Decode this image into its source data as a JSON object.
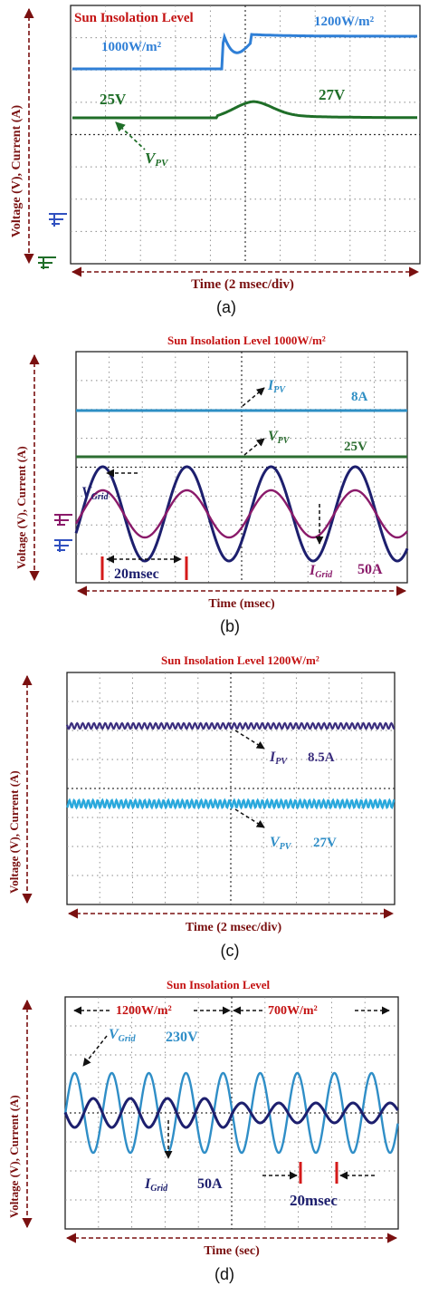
{
  "chart_data": [
    {
      "panel": "(a)",
      "type": "line",
      "title": "Sun Insolation Level",
      "xlabel": "Time (2 msec/div)",
      "ylabel": "Voltage (V), Current (A)",
      "series": [
        {
          "name": "Sun Insolation Level",
          "color": "#2f7fd6",
          "values_before": "1000W/m²",
          "values_after": "1200W/m²"
        },
        {
          "name": "V_PV",
          "color": "#1f6e28",
          "values_before": "25V",
          "values_after": "27V"
        }
      ],
      "labels": {
        "title": "Sun Insolation Level",
        "insol_before": "1000W/m²",
        "insol_after": "1200W/m²",
        "v_before": "25V",
        "v_after": "27V",
        "vpv_main": "V",
        "vpv_sub": "PV"
      }
    },
    {
      "panel": "(b)",
      "type": "line",
      "title": "Sun Insolation Level   1000W/m²",
      "xlabel": "Time (msec)",
      "ylabel": "Voltage (V), Current (A)",
      "series": [
        {
          "name": "I_PV",
          "value": "8A",
          "color": "#2e8fc4"
        },
        {
          "name": "V_PV",
          "value": "25V",
          "color": "#2d6e32"
        },
        {
          "name": "V_Grid",
          "color": "#1d1f6e"
        },
        {
          "name": "I_Grid",
          "value": "50A",
          "color": "#8a1a6a"
        }
      ],
      "labels": {
        "title": "Sun Insolation Level   1000W/m²",
        "ipv_main": "I",
        "ipv_sub": "PV",
        "ipv_val": "8A",
        "vpv_main": "V",
        "vpv_sub": "PV",
        "vpv_val": "25V",
        "vgrid_main": "V",
        "vgrid_sub": "Grid",
        "igrid_main": "I",
        "igrid_sub": "Grid",
        "igrid_val": "50A",
        "period": "20msec"
      }
    },
    {
      "panel": "(c)",
      "type": "line",
      "title": "Sun Insolation Level   1200W/m²",
      "xlabel": "Time (2 msec/div)",
      "ylabel": "Voltage (V), Current (A)",
      "series": [
        {
          "name": "I_PV",
          "value": "8.5A",
          "color": "#3b2e7e"
        },
        {
          "name": "V_PV",
          "value": "27V",
          "color": "#29a8dc"
        }
      ],
      "labels": {
        "title": "Sun Insolation Level   1200W/m²",
        "ipv_main": "I",
        "ipv_sub": "PV",
        "ipv_val": "8.5A",
        "vpv_main": "V",
        "vpv_sub": "PV",
        "vpv_val": "27V"
      }
    },
    {
      "panel": "(d)",
      "type": "line",
      "title": "Sun Insolation Level",
      "xlabel": "Time (sec)",
      "ylabel": "Voltage (V), Current (A)",
      "series": [
        {
          "name": "V_Grid",
          "value": "230V",
          "color": "#2f8ec7"
        },
        {
          "name": "I_Grid",
          "value": "50A",
          "color": "#1d1f6e"
        }
      ],
      "labels": {
        "title": "Sun Insolation Level",
        "seg1": "1200W/m²",
        "seg2": "700W/m²",
        "vgrid_main": "V",
        "vgrid_sub": "Grid",
        "vgrid_val": "230V",
        "igrid_main": "I",
        "igrid_sub": "Grid",
        "igrid_val": "50A",
        "period": "20msec"
      }
    }
  ],
  "captions": {
    "a": "(a)",
    "b": "(b)",
    "c": "(c)",
    "d": "(d)"
  }
}
